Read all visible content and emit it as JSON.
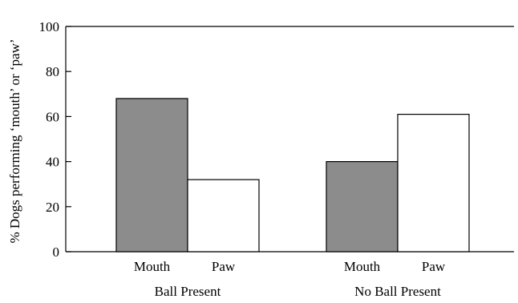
{
  "chart_data": {
    "type": "bar",
    "title": "",
    "ylabel": "% Dogs performing ‘mouth’ or ‘paw’",
    "xlabel": "",
    "ylim": [
      0,
      100
    ],
    "yticks": [
      0,
      20,
      40,
      60,
      80,
      100
    ],
    "grid": false,
    "legend": "none",
    "groups": [
      {
        "name": "Ball Present",
        "bars": [
          {
            "label": "Mouth",
            "value": 68,
            "color": "#8c8c8c"
          },
          {
            "label": "Paw",
            "value": 32,
            "color": "#ffffff"
          }
        ]
      },
      {
        "name": "No Ball Present",
        "bars": [
          {
            "label": "Mouth",
            "value": 40,
            "color": "#8c8c8c"
          },
          {
            "label": "Paw",
            "value": 61,
            "color": "#ffffff"
          }
        ]
      }
    ]
  }
}
